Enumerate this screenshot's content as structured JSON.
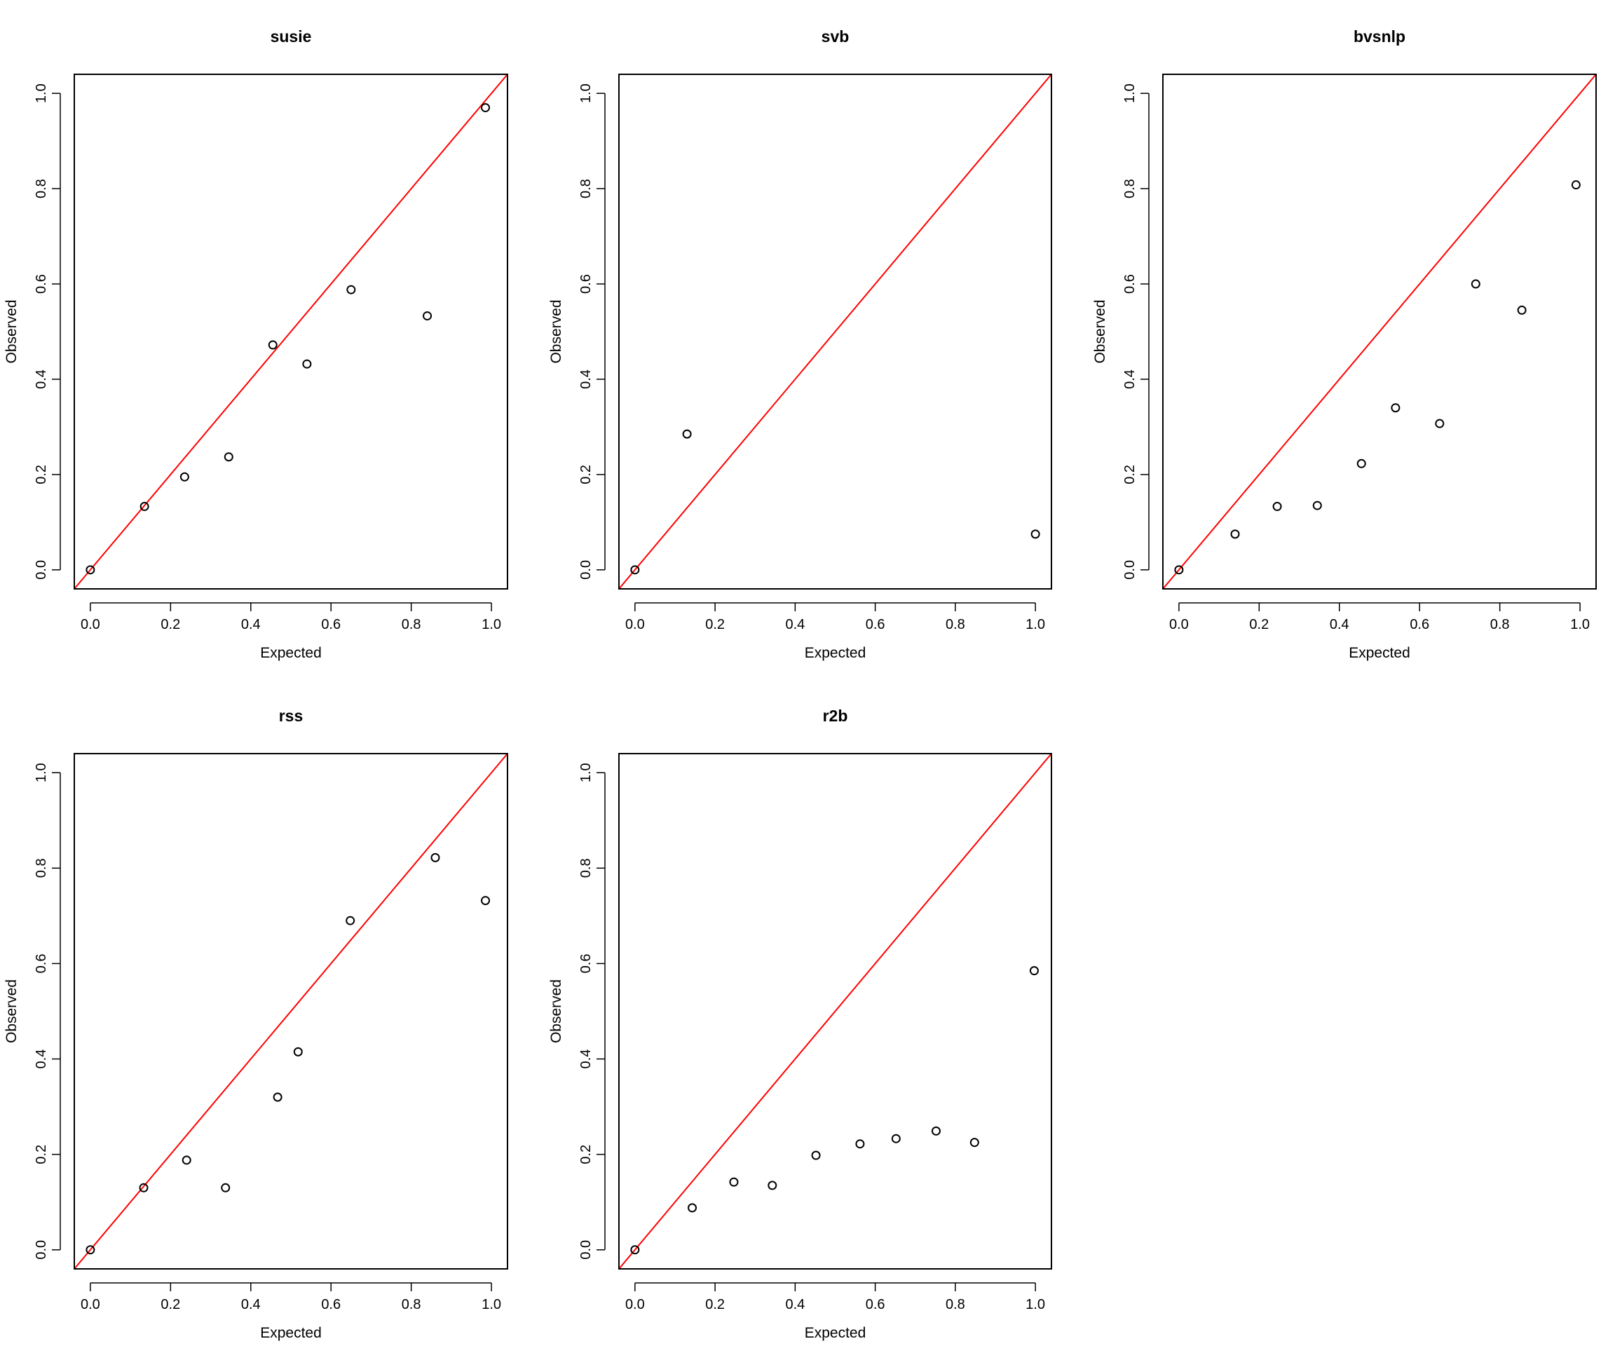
{
  "chart_data": [
    {
      "type": "scatter",
      "title": "susie",
      "xlabel": "Expected",
      "ylabel": "Observed",
      "xlim": [
        0,
        1
      ],
      "ylim": [
        0,
        1
      ],
      "xticks": [
        "0.0",
        "0.2",
        "0.4",
        "0.6",
        "0.8",
        "1.0"
      ],
      "yticks": [
        "0.0",
        "0.2",
        "0.4",
        "0.6",
        "0.8",
        "1.0"
      ],
      "reference_line": "y = x",
      "reference_color": "#ff0000",
      "points": [
        {
          "x": 0.0,
          "y": 0.0
        },
        {
          "x": 0.135,
          "y": 0.133
        },
        {
          "x": 0.235,
          "y": 0.195
        },
        {
          "x": 0.345,
          "y": 0.237
        },
        {
          "x": 0.455,
          "y": 0.472
        },
        {
          "x": 0.54,
          "y": 0.432
        },
        {
          "x": 0.65,
          "y": 0.588
        },
        {
          "x": 0.84,
          "y": 0.533
        },
        {
          "x": 0.985,
          "y": 0.97
        }
      ]
    },
    {
      "type": "scatter",
      "title": "svb",
      "xlabel": "Expected",
      "ylabel": "Observed",
      "xlim": [
        0,
        1
      ],
      "ylim": [
        0,
        1
      ],
      "xticks": [
        "0.0",
        "0.2",
        "0.4",
        "0.6",
        "0.8",
        "1.0"
      ],
      "yticks": [
        "0.0",
        "0.2",
        "0.4",
        "0.6",
        "0.8",
        "1.0"
      ],
      "reference_line": "y = x",
      "reference_color": "#ff0000",
      "points": [
        {
          "x": 0.0,
          "y": 0.0
        },
        {
          "x": 0.13,
          "y": 0.285
        },
        {
          "x": 1.0,
          "y": 0.075
        }
      ]
    },
    {
      "type": "scatter",
      "title": "bvsnlp",
      "xlabel": "Expected",
      "ylabel": "Observed",
      "xlim": [
        0,
        1
      ],
      "ylim": [
        0,
        1
      ],
      "xticks": [
        "0.0",
        "0.2",
        "0.4",
        "0.6",
        "0.8",
        "1.0"
      ],
      "yticks": [
        "0.0",
        "0.2",
        "0.4",
        "0.6",
        "0.8",
        "1.0"
      ],
      "reference_line": "y = x",
      "reference_color": "#ff0000",
      "points": [
        {
          "x": 0.0,
          "y": 0.0
        },
        {
          "x": 0.14,
          "y": 0.075
        },
        {
          "x": 0.245,
          "y": 0.133
        },
        {
          "x": 0.345,
          "y": 0.135
        },
        {
          "x": 0.455,
          "y": 0.223
        },
        {
          "x": 0.54,
          "y": 0.34
        },
        {
          "x": 0.65,
          "y": 0.307
        },
        {
          "x": 0.74,
          "y": 0.6
        },
        {
          "x": 0.855,
          "y": 0.545
        },
        {
          "x": 0.99,
          "y": 0.808
        }
      ]
    },
    {
      "type": "scatter",
      "title": "rss",
      "xlabel": "Expected",
      "ylabel": "Observed",
      "xlim": [
        0,
        1
      ],
      "ylim": [
        0,
        1
      ],
      "xticks": [
        "0.0",
        "0.2",
        "0.4",
        "0.6",
        "0.8",
        "1.0"
      ],
      "yticks": [
        "0.0",
        "0.2",
        "0.4",
        "0.6",
        "0.8",
        "1.0"
      ],
      "reference_line": "y = x",
      "reference_color": "#ff0000",
      "points": [
        {
          "x": 0.0,
          "y": 0.0
        },
        {
          "x": 0.133,
          "y": 0.13
        },
        {
          "x": 0.24,
          "y": 0.188
        },
        {
          "x": 0.337,
          "y": 0.13
        },
        {
          "x": 0.467,
          "y": 0.32
        },
        {
          "x": 0.518,
          "y": 0.415
        },
        {
          "x": 0.648,
          "y": 0.69
        },
        {
          "x": 0.86,
          "y": 0.822
        },
        {
          "x": 0.985,
          "y": 0.732
        }
      ]
    },
    {
      "type": "scatter",
      "title": "r2b",
      "xlabel": "Expected",
      "ylabel": "Observed",
      "xlim": [
        0,
        1
      ],
      "ylim": [
        0,
        1
      ],
      "xticks": [
        "0.0",
        "0.2",
        "0.4",
        "0.6",
        "0.8",
        "1.0"
      ],
      "yticks": [
        "0.0",
        "0.2",
        "0.4",
        "0.6",
        "0.8",
        "1.0"
      ],
      "reference_line": "y = x",
      "reference_color": "#ff0000",
      "points": [
        {
          "x": 0.0,
          "y": 0.0
        },
        {
          "x": 0.143,
          "y": 0.088
        },
        {
          "x": 0.247,
          "y": 0.142
        },
        {
          "x": 0.343,
          "y": 0.135
        },
        {
          "x": 0.452,
          "y": 0.198
        },
        {
          "x": 0.562,
          "y": 0.222
        },
        {
          "x": 0.652,
          "y": 0.233
        },
        {
          "x": 0.752,
          "y": 0.249
        },
        {
          "x": 0.848,
          "y": 0.225
        },
        {
          "x": 0.997,
          "y": 0.585
        }
      ]
    }
  ]
}
